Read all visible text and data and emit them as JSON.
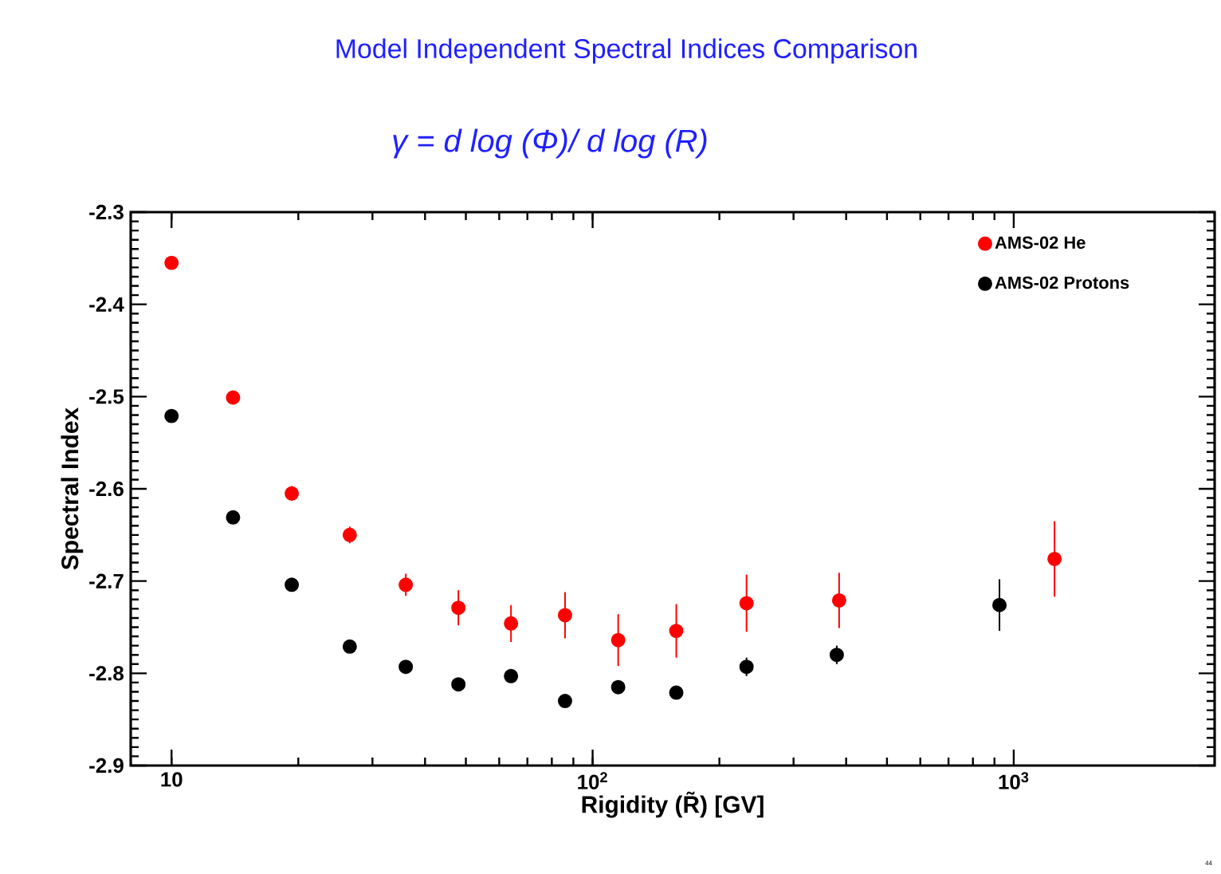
{
  "chart_data": {
    "type": "scatter",
    "title": "Model Independent Spectral Indices Comparison",
    "subtitle": "γ = d log (Φ)/ d log (R)",
    "xlabel": "Rigidity (R̃) [GV]",
    "ylabel": "Spectral Index",
    "log": "x",
    "marker": "circle",
    "legend": "top right",
    "xlim": [
      8,
      3000
    ],
    "xticks": [
      10,
      {
        "value": 100,
        "label": "10$^{2}$"
      },
      {
        "value": 1000,
        "label": "10$^{3}$"
      }
    ],
    "ylim": [
      -2.9,
      -2.3
    ],
    "yticks": [
      -2.9,
      -2.8,
      -2.7,
      -2.6,
      -2.5,
      -2.4,
      -2.3
    ],
    "series": [
      {
        "name": "AMS-02 He",
        "color": "#ff0000",
        "x": [
          10,
          14,
          19.3,
          26.5,
          36,
          48,
          64,
          86,
          115,
          158,
          232,
          385,
          1250
        ],
        "values": [
          -2.355,
          -2.501,
          -2.605,
          -2.65,
          -2.704,
          -2.729,
          -2.746,
          -2.737,
          -2.764,
          -2.754,
          -2.724,
          -2.721,
          -2.676
        ],
        "errors": [
          0.005,
          0.006,
          0.008,
          0.009,
          0.012,
          0.019,
          0.02,
          0.025,
          0.028,
          0.029,
          0.031,
          0.03,
          0.041
        ]
      },
      {
        "name": "AMS-02 Protons",
        "color": "#000000",
        "x": [
          10,
          14,
          19.3,
          26.5,
          36,
          48,
          64,
          86,
          115,
          158,
          232,
          380,
          925
        ],
        "values": [
          -2.521,
          -2.631,
          -2.704,
          -2.771,
          -2.793,
          -2.812,
          -2.803,
          -2.83,
          -2.815,
          -2.821,
          -2.793,
          -2.78,
          -2.726
        ],
        "errors": [
          null,
          null,
          null,
          null,
          null,
          null,
          null,
          null,
          null,
          null,
          0.01,
          0.01,
          0.028
        ]
      }
    ],
    "annotations": [
      "44"
    ]
  }
}
